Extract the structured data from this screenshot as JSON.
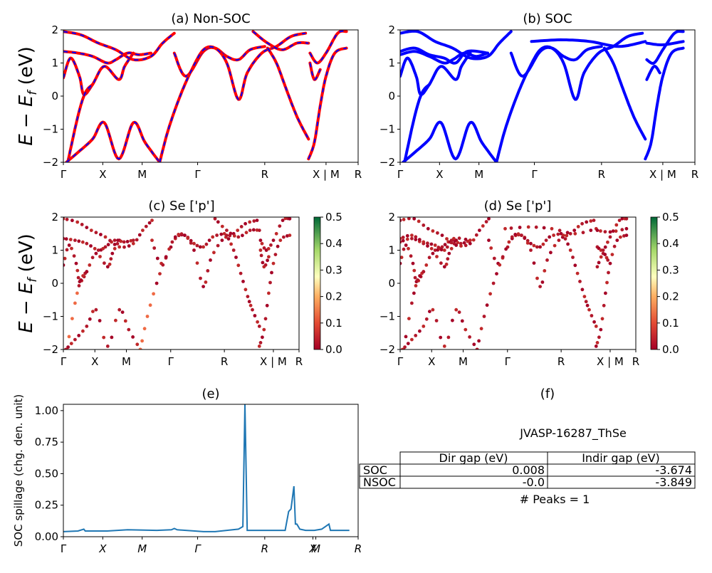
{
  "chart_data": [
    {
      "id": "a",
      "type": "line",
      "title": "(a) Non-SOC",
      "ylabel": "E − E_f (eV)",
      "ylim": [
        -2,
        2
      ],
      "yticks": [
        "2",
        "1",
        "0",
        "−1",
        "−2"
      ],
      "xticks": [
        "Γ",
        "X",
        "M",
        "Γ",
        "R",
        "X | M",
        "R"
      ],
      "series": [
        {
          "color": "#ff0000",
          "dash": "#0000ff",
          "bands": [
            [
              [
                0,
                0.55
              ],
              [
                0.25,
                1.15
              ],
              [
                0.55,
                0.6
              ],
              [
                0.7,
                0.05
              ],
              [
                1.0,
                0.35
              ],
              [
                1.4,
                0.9
              ],
              [
                1.9,
                0.5
              ],
              [
                2.1,
                0.9
              ],
              [
                2.4,
                1.3
              ]
            ],
            [
              [
                0,
                1.35
              ],
              [
                0.5,
                1.3
              ],
              [
                1.0,
                1.2
              ],
              [
                1.5,
                1.0
              ],
              [
                1.8,
                1.1
              ],
              [
                2.2,
                1.3
              ],
              [
                2.6,
                1.25
              ],
              [
                3.0,
                1.3
              ]
            ],
            [
              [
                0,
                1.95
              ],
              [
                0.6,
                1.85
              ],
              [
                1.2,
                1.6
              ],
              [
                1.8,
                1.4
              ],
              [
                2.4,
                1.1
              ],
              [
                3.0,
                1.2
              ],
              [
                3.4,
                1.6
              ],
              [
                3.8,
                1.9
              ]
            ],
            [
              [
                0.15,
                -2
              ],
              [
                0.5,
                -0.6
              ],
              [
                0.75,
                0.1
              ],
              [
                1.0,
                0.35
              ]
            ],
            [
              [
                0.1,
                -2
              ],
              [
                0.5,
                -1.7
              ],
              [
                1.0,
                -1.3
              ],
              [
                1.4,
                -0.8
              ],
              [
                1.9,
                -1.9
              ],
              [
                2.4,
                -0.8
              ],
              [
                2.8,
                -1.4
              ],
              [
                3.3,
                -2
              ]
            ],
            [
              [
                3.8,
                1.3
              ],
              [
                4.2,
                0.6
              ],
              [
                4.8,
                1.35
              ],
              [
                5.2,
                1.45
              ],
              [
                5.6,
                1.2
              ],
              [
                6.0,
                1.1
              ],
              [
                6.4,
                1.4
              ],
              [
                6.9,
                1.5
              ]
            ],
            [
              [
                3.3,
                -2
              ],
              [
                3.6,
                -1
              ],
              [
                4.0,
                0
              ],
              [
                4.4,
                0.8
              ],
              [
                4.8,
                1.4
              ],
              [
                5.2,
                1.45
              ],
              [
                5.6,
                1.0
              ],
              [
                6.0,
                -0.1
              ],
              [
                6.3,
                0.7
              ],
              [
                6.8,
                1.3
              ],
              [
                7.3,
                1.5
              ],
              [
                7.8,
                1.8
              ],
              [
                8.3,
                1.9
              ]
            ],
            [
              [
                7.0,
                1.45
              ],
              [
                7.3,
                1.0
              ],
              [
                7.6,
                0.3
              ],
              [
                7.9,
                -0.4
              ],
              [
                8.1,
                -0.8
              ],
              [
                8.4,
                -1.3
              ]
            ],
            [
              [
                8.4,
                -1.9
              ],
              [
                8.6,
                -1.4
              ],
              [
                8.8,
                -0.3
              ],
              [
                9.0,
                0.6
              ],
              [
                9.3,
                1.3
              ],
              [
                9.7,
                1.45
              ]
            ],
            [
              [
                8.45,
                1.3
              ],
              [
                8.7,
                1.0
              ],
              [
                9.0,
                1.3
              ],
              [
                9.4,
                1.9
              ],
              [
                9.7,
                1.95
              ]
            ],
            [
              [
                6.5,
                1.95
              ],
              [
                7.0,
                1.6
              ],
              [
                7.5,
                1.4
              ],
              [
                8.0,
                1.6
              ],
              [
                8.4,
                1.6
              ]
            ],
            [
              [
                8.45,
                1.0
              ],
              [
                8.6,
                0.5
              ],
              [
                8.8,
                0.8
              ]
            ]
          ]
        }
      ]
    },
    {
      "id": "b",
      "type": "line",
      "title": "(b) SOC",
      "ylim": [
        -2,
        2
      ],
      "yticks": [
        "2",
        "1",
        "0",
        "−1",
        "−2"
      ],
      "xticks": [
        "Γ",
        "X",
        "M",
        "Γ",
        "R",
        "X | M",
        "R"
      ],
      "series": [
        {
          "color": "#0000ff",
          "bands": [
            [
              [
                0,
                0.6
              ],
              [
                0.25,
                1.15
              ],
              [
                0.55,
                0.6
              ],
              [
                0.7,
                0.05
              ],
              [
                1.0,
                0.35
              ],
              [
                1.4,
                0.9
              ],
              [
                1.9,
                0.5
              ],
              [
                2.1,
                0.9
              ],
              [
                2.4,
                1.3
              ]
            ],
            [
              [
                0,
                1.25
              ],
              [
                0.5,
                1.35
              ],
              [
                1.0,
                1.2
              ],
              [
                1.5,
                1.0
              ],
              [
                1.8,
                1.1
              ],
              [
                2.2,
                1.3
              ],
              [
                2.6,
                1.2
              ],
              [
                3.0,
                1.3
              ]
            ],
            [
              [
                0,
                1.35
              ],
              [
                0.5,
                1.45
              ],
              [
                1.0,
                1.25
              ],
              [
                1.5,
                1.15
              ],
              [
                1.9,
                1.0
              ],
              [
                2.3,
                1.35
              ],
              [
                3.0,
                1.3
              ]
            ],
            [
              [
                0,
                1.9
              ],
              [
                0.6,
                1.95
              ],
              [
                1.2,
                1.65
              ],
              [
                1.8,
                1.45
              ],
              [
                2.4,
                1.15
              ],
              [
                3.0,
                1.2
              ],
              [
                3.4,
                1.6
              ],
              [
                3.8,
                1.95
              ]
            ],
            [
              [
                0.15,
                -2
              ],
              [
                0.5,
                -0.6
              ],
              [
                0.75,
                0.1
              ],
              [
                1.0,
                0.35
              ]
            ],
            [
              [
                0.1,
                -2
              ],
              [
                0.5,
                -1.7
              ],
              [
                1.0,
                -1.3
              ],
              [
                1.4,
                -0.8
              ],
              [
                1.9,
                -1.9
              ],
              [
                2.4,
                -0.8
              ],
              [
                2.8,
                -1.4
              ],
              [
                3.3,
                -2
              ]
            ],
            [
              [
                3.8,
                1.3
              ],
              [
                4.2,
                0.6
              ],
              [
                4.8,
                1.35
              ],
              [
                5.2,
                1.45
              ],
              [
                5.6,
                1.2
              ],
              [
                6.0,
                1.1
              ],
              [
                6.4,
                1.4
              ],
              [
                6.9,
                1.5
              ]
            ],
            [
              [
                3.3,
                -2
              ],
              [
                3.6,
                -1
              ],
              [
                4.0,
                0
              ],
              [
                4.4,
                0.8
              ],
              [
                4.8,
                1.4
              ],
              [
                5.2,
                1.45
              ],
              [
                5.6,
                1.0
              ],
              [
                6.0,
                -0.1
              ],
              [
                6.3,
                0.7
              ],
              [
                6.8,
                1.3
              ],
              [
                7.3,
                1.5
              ],
              [
                7.8,
                1.8
              ],
              [
                8.3,
                1.9
              ]
            ],
            [
              [
                7.0,
                1.45
              ],
              [
                7.3,
                1.0
              ],
              [
                7.6,
                0.3
              ],
              [
                7.9,
                -0.4
              ],
              [
                8.1,
                -0.8
              ],
              [
                8.4,
                -1.3
              ]
            ],
            [
              [
                8.4,
                -1.9
              ],
              [
                8.6,
                -1.4
              ],
              [
                8.8,
                -0.3
              ],
              [
                9.0,
                0.6
              ],
              [
                9.3,
                1.3
              ],
              [
                9.7,
                1.45
              ]
            ],
            [
              [
                8.45,
                1.1
              ],
              [
                8.7,
                1.0
              ],
              [
                9.0,
                1.4
              ],
              [
                9.4,
                1.9
              ],
              [
                9.7,
                1.95
              ]
            ],
            [
              [
                4.5,
                1.65
              ],
              [
                5.5,
                1.7
              ],
              [
                6.5,
                1.65
              ],
              [
                7.5,
                1.5
              ],
              [
                8.4,
                1.65
              ]
            ],
            [
              [
                8.45,
                1.6
              ],
              [
                9.0,
                1.55
              ],
              [
                9.7,
                1.65
              ]
            ],
            [
              [
                8.45,
                0.5
              ],
              [
                8.7,
                0.9
              ],
              [
                8.9,
                0.7
              ]
            ]
          ]
        }
      ]
    },
    {
      "id": "c",
      "type": "scatter",
      "title": "(c)  Se ['p']",
      "ylabel": "E − E_f (eV)",
      "ylim": [
        -2,
        2
      ],
      "yticks": [
        "2",
        "1",
        "0",
        "−1",
        "−2"
      ],
      "xticks": [
        "Γ",
        "X",
        "M",
        "Γ",
        "R",
        "X | M",
        "R"
      ],
      "colorbar": {
        "ticks": [
          "0.5",
          "0.4",
          "0.3",
          "0.2",
          "0.1",
          "0.0"
        ],
        "range": [
          0,
          0.5
        ]
      },
      "source": "a"
    },
    {
      "id": "d",
      "type": "scatter",
      "title": "(d) Se ['p']",
      "ylim": [
        -2,
        2
      ],
      "yticks": [
        "2",
        "1",
        "0",
        "−1",
        "−2"
      ],
      "xticks": [
        "Γ",
        "X",
        "M",
        "Γ",
        "R",
        "X | M",
        "R"
      ],
      "colorbar": {
        "ticks": [
          "0.5",
          "0.4",
          "0.3",
          "0.2",
          "0.1",
          "0.0"
        ],
        "range": [
          0,
          0.5
        ]
      },
      "source": "b"
    },
    {
      "id": "e",
      "type": "line",
      "title": "(e)",
      "ylabel": "SOC spillage (chg. den. unit)",
      "ylim": [
        0,
        1.05
      ],
      "yticks": [
        "1.00",
        "0.75",
        "0.50",
        "0.25",
        "0.00"
      ],
      "xticks": [
        "Γ",
        "X",
        "M",
        "Γ",
        "R",
        "X",
        "M",
        "R"
      ],
      "series": [
        {
          "color": "#1f77b4",
          "points": [
            [
              0,
              0.04
            ],
            [
              0.5,
              0.045
            ],
            [
              0.7,
              0.06
            ],
            [
              0.75,
              0.045
            ],
            [
              1.5,
              0.045
            ],
            [
              2.2,
              0.055
            ],
            [
              3.2,
              0.05
            ],
            [
              3.7,
              0.055
            ],
            [
              3.8,
              0.065
            ],
            [
              3.9,
              0.055
            ],
            [
              4.5,
              0.045
            ],
            [
              4.8,
              0.04
            ],
            [
              5.2,
              0.04
            ],
            [
              5.6,
              0.05
            ],
            [
              6.0,
              0.06
            ],
            [
              6.15,
              0.08
            ],
            [
              6.22,
              1.05
            ],
            [
              6.3,
              0.05
            ],
            [
              7.6,
              0.05
            ],
            [
              7.72,
              0.2
            ],
            [
              7.8,
              0.22
            ],
            [
              7.9,
              0.4
            ],
            [
              7.95,
              0.1
            ],
            [
              8.0,
              0.1
            ],
            [
              8.05,
              0.08
            ],
            [
              8.1,
              0.06
            ],
            [
              8.3,
              0.05
            ],
            [
              8.6,
              0.05
            ],
            [
              8.85,
              0.06
            ],
            [
              9.1,
              0.1
            ],
            [
              9.15,
              0.05
            ],
            [
              9.8,
              0.05
            ]
          ]
        }
      ]
    },
    {
      "id": "f",
      "type": "table",
      "title": "(f)",
      "subtitle": "JVASP-16287_ThSe",
      "columns": [
        "Dir gap (eV)",
        "Indir gap (eV)"
      ],
      "rows": [
        {
          "label": "SOC",
          "values": [
            "0.008",
            "-3.674"
          ]
        },
        {
          "label": "NSOC",
          "values": [
            "-0.0",
            "-3.849"
          ]
        }
      ],
      "footer": "# Peaks = 1"
    }
  ]
}
